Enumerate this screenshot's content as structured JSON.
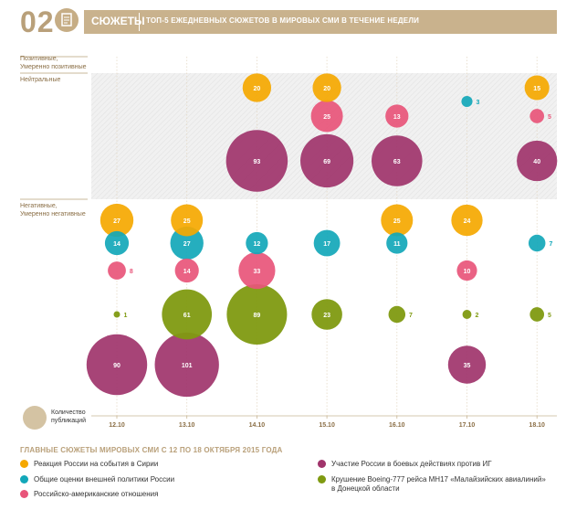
{
  "header": {
    "number": "02",
    "title": "СЮЖЕТЫ",
    "subtitle": "ТОП-5 ЕЖЕДНЕВНЫХ СЮЖЕТОВ В МИРОВЫХ СМИ В ТЕЧЕНИЕ НЕДЕЛИ",
    "icon": "document-icon"
  },
  "zones": {
    "positive": "Позитивные,\nУмеренно позитивные",
    "neutral": "Нейтральные",
    "negative": "Негативные,\nУмеренно негативные"
  },
  "size_legend": "Количество\nпубликаций",
  "legend": {
    "title": "ГЛАВНЫЕ СЮЖЕТЫ МИРОВЫХ СМИ С 12 ПО 18 ОКТЯБРЯ 2015 ГОДА",
    "items": [
      {
        "label": "Реакция России на события в Сирии",
        "color": "#f5a800"
      },
      {
        "label": "Общие оценки внешней политики России",
        "color": "#12a7b9"
      },
      {
        "label": "Российско-американские отношения",
        "color": "#e8557a"
      },
      {
        "label": "Участие России в боевых действиях против ИГ",
        "color": "#a0346b"
      },
      {
        "label": "Крушение Boeing-777 рейса MH17 «Малайзийских авиалиний» в Донецкой области",
        "color": "#7f9a11"
      }
    ]
  },
  "chart_data": {
    "type": "scatter",
    "categories": [
      "12.10",
      "13.10",
      "14.10",
      "15.10",
      "16.10",
      "17.10",
      "18.10"
    ],
    "size_label": "Количество публикаций",
    "series": [
      {
        "name": "Реакция России на события в Сирии",
        "color": "#f5a800",
        "points": [
          {
            "date": "12.10",
            "zone": "Негативные, Умеренно негативные",
            "value": 27
          },
          {
            "date": "13.10",
            "zone": "Негативные, Умеренно негативные",
            "value": 25
          },
          {
            "date": "14.10",
            "zone": "Нейтральные",
            "value": 20
          },
          {
            "date": "15.10",
            "zone": "Нейтральные",
            "value": 20
          },
          {
            "date": "16.10",
            "zone": "Негативные, Умеренно негативные",
            "value": 25
          },
          {
            "date": "17.10",
            "zone": "Негативные, Умеренно негативные",
            "value": 24
          },
          {
            "date": "18.10",
            "zone": "Нейтральные",
            "value": 15
          }
        ]
      },
      {
        "name": "Общие оценки внешней политики России",
        "color": "#12a7b9",
        "points": [
          {
            "date": "12.10",
            "zone": "Негативные, Умеренно негативные",
            "value": 14
          },
          {
            "date": "13.10",
            "zone": "Негативные, Умеренно негативные",
            "value": 27
          },
          {
            "date": "14.10",
            "zone": "Негативные, Умеренно негативные",
            "value": 12
          },
          {
            "date": "15.10",
            "zone": "Негативные, Умеренно негативные",
            "value": 17
          },
          {
            "date": "16.10",
            "zone": "Негативные, Умеренно негативные",
            "value": 11
          },
          {
            "date": "17.10",
            "zone": "Нейтральные",
            "value": 3
          },
          {
            "date": "18.10",
            "zone": "Негативные, Умеренно негативные",
            "value": 7
          }
        ]
      },
      {
        "name": "Российско-американские отношения",
        "color": "#e8557a",
        "points": [
          {
            "date": "12.10",
            "zone": "Негативные, Умеренно негативные",
            "value": 8
          },
          {
            "date": "13.10",
            "zone": "Негативные, Умеренно негативные",
            "value": 14
          },
          {
            "date": "14.10",
            "zone": "Негативные, Умеренно негативные",
            "value": 33
          },
          {
            "date": "15.10",
            "zone": "Нейтральные",
            "value": 25
          },
          {
            "date": "16.10",
            "zone": "Нейтральные",
            "value": 13
          },
          {
            "date": "17.10",
            "zone": "Негативные, Умеренно негативные",
            "value": 10
          },
          {
            "date": "18.10",
            "zone": "Нейтральные",
            "value": 5
          }
        ]
      },
      {
        "name": "Участие России в боевых действиях против ИГ",
        "color": "#a0346b",
        "points": [
          {
            "date": "12.10",
            "zone": "Негативные, Умеренно негативные",
            "value": 90
          },
          {
            "date": "13.10",
            "zone": "Негативные, Умеренно негативные",
            "value": 101
          },
          {
            "date": "14.10",
            "zone": "Нейтральные",
            "value": 93
          },
          {
            "date": "15.10",
            "zone": "Нейтральные",
            "value": 69
          },
          {
            "date": "16.10",
            "zone": "Нейтральные",
            "value": 63
          },
          {
            "date": "17.10",
            "zone": "Негативные, Умеренно негативные",
            "value": 35
          },
          {
            "date": "18.10",
            "zone": "Нейтральные",
            "value": 40
          }
        ]
      },
      {
        "name": "Крушение Boeing-777 рейса MH17 «Малайзийских авиалиний» в Донецкой области",
        "color": "#7f9a11",
        "points": [
          {
            "date": "12.10",
            "zone": "Негативные, Умеренно негативные",
            "value": 1
          },
          {
            "date": "13.10",
            "zone": "Негативные, Умеренно негативные",
            "value": 61
          },
          {
            "date": "14.10",
            "zone": "Негативные, Умеренно негативные",
            "value": 89
          },
          {
            "date": "15.10",
            "zone": "Негативные, Умеренно негативные",
            "value": 23
          },
          {
            "date": "16.10",
            "zone": "Негативные, Умеренно негативные",
            "value": 7
          },
          {
            "date": "17.10",
            "zone": "Негативные, Умеренно негативные",
            "value": 2
          },
          {
            "date": "18.10",
            "zone": "Негативные, Умеренно негативные",
            "value": 5
          }
        ]
      }
    ]
  }
}
